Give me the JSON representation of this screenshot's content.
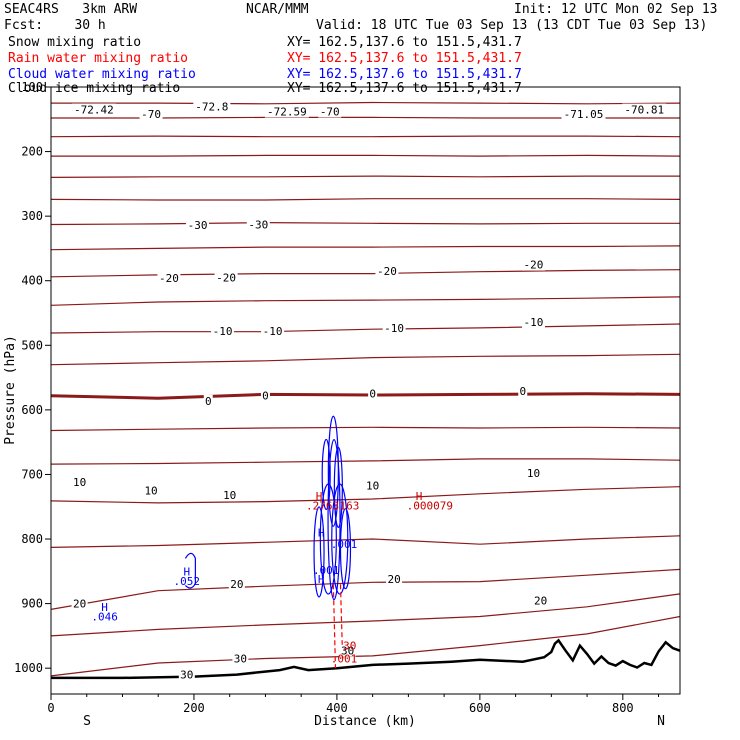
{
  "header": {
    "model": "SEAC4RS   3km ARW",
    "forecast": "Fcst:    30 h",
    "center": "NCAR/MMM",
    "init": "Init: 12 UTC Mon 02 Sep 13",
    "valid": "Valid: 18 UTC Tue 03 Sep 13 (13 CDT Tue 03 Sep 13)"
  },
  "fields": [
    {
      "name": "Snow mixing ratio",
      "xy": "XY= 162.5,137.6 to 151.5,431.7",
      "color": "#000000"
    },
    {
      "name": "Rain water mixing ratio",
      "xy": "XY= 162.5,137.6 to 151.5,431.7",
      "color": "#ff0000"
    },
    {
      "name": "Cloud water mixing ratio",
      "xy": "XY= 162.5,137.6 to 151.5,431.7",
      "color": "#0000ff"
    },
    {
      "name": "Cloud ice mixing ratio",
      "xy": "XY= 162.5,137.6 to 151.5,431.7",
      "color": "#000000"
    }
  ],
  "chart_data": {
    "type": "line",
    "title": "",
    "xlabel": "Distance (km)",
    "ylabel": "Pressure (hPa)",
    "xlim": [
      0,
      880
    ],
    "ylim": [
      1040,
      100
    ],
    "x_ticks": [
      0,
      200,
      400,
      600,
      800
    ],
    "y_ticks": [
      100,
      200,
      300,
      400,
      500,
      600,
      700,
      800,
      900,
      1000
    ],
    "x_end_labels": {
      "left": "S",
      "right": "N"
    },
    "contour_color": "#8b1a1a",
    "terrain_color": "#000000",
    "isotherms": [
      {
        "level": "-70",
        "pressure": [
          125,
          125,
          126,
          124,
          125,
          126,
          125
        ]
      },
      {
        "level": "",
        "pressure": [
          148,
          148,
          147,
          147,
          148,
          148,
          148
        ]
      },
      {
        "level": "",
        "pressure": [
          177,
          176,
          177,
          177,
          176,
          176,
          177
        ]
      },
      {
        "level": "",
        "pressure": [
          207,
          207,
          206,
          206,
          207,
          206,
          207
        ]
      },
      {
        "level": "",
        "pressure": [
          240,
          239,
          239,
          238,
          239,
          238,
          238
        ]
      },
      {
        "level": "",
        "pressure": [
          274,
          275,
          275,
          273,
          273,
          273,
          274
        ]
      },
      {
        "level": "-30",
        "pressure": [
          313,
          312,
          310,
          311,
          312,
          311,
          311
        ]
      },
      {
        "level": "",
        "pressure": [
          352,
          350,
          348,
          348,
          347,
          347,
          346
        ]
      },
      {
        "level": "-20",
        "pressure": [
          394,
          391,
          389,
          389,
          386,
          384,
          383
        ]
      },
      {
        "level": "",
        "pressure": [
          438,
          433,
          431,
          430,
          429,
          427,
          425
        ]
      },
      {
        "level": "-10",
        "pressure": [
          481,
          479,
          479,
          475,
          473,
          470,
          467
        ]
      },
      {
        "level": "",
        "pressure": [
          530,
          527,
          524,
          519,
          517,
          516,
          514
        ]
      },
      {
        "level": "0",
        "pressure": [
          578,
          582,
          576,
          577,
          576,
          575,
          576
        ]
      },
      {
        "level": "",
        "pressure": [
          632,
          630,
          628,
          627,
          628,
          627,
          628
        ]
      },
      {
        "level": "",
        "pressure": [
          684,
          683,
          681,
          679,
          676,
          676,
          678
        ]
      },
      {
        "level": "10",
        "pressure": [
          741,
          744,
          742,
          738,
          730,
          723,
          719
        ]
      },
      {
        "level": "",
        "pressure": [
          813,
          810,
          805,
          800,
          808,
          800,
          795
        ]
      },
      {
        "level": "20",
        "pressure": [
          909,
          880,
          873,
          867,
          866,
          856,
          847
        ]
      },
      {
        "level": "",
        "pressure": [
          950,
          940,
          933,
          927,
          920,
          905,
          885
        ]
      },
      {
        "level": "30",
        "pressure": [
          1012,
          992,
          985,
          981,
          965,
          947,
          920
        ]
      }
    ],
    "isotherm_x": [
      0,
      150,
      300,
      450,
      600,
      750,
      880
    ],
    "contour_labels": [
      {
        "text": "-72.42",
        "x": 60,
        "p": 135
      },
      {
        "text": "-72.8",
        "x": 225,
        "p": 130
      },
      {
        "text": "-72.59",
        "x": 330,
        "p": 138
      },
      {
        "text": "-70",
        "x": 140,
        "p": 142
      },
      {
        "text": "-70",
        "x": 390,
        "p": 138
      },
      {
        "text": "-71.05",
        "x": 745,
        "p": 142
      },
      {
        "text": "-70.81",
        "x": 830,
        "p": 135
      },
      {
        "text": "-30",
        "x": 205,
        "p": 314
      },
      {
        "text": "-30",
        "x": 290,
        "p": 313
      },
      {
        "text": "-20",
        "x": 165,
        "p": 396
      },
      {
        "text": "-20",
        "x": 245,
        "p": 395
      },
      {
        "text": "-20",
        "x": 470,
        "p": 385
      },
      {
        "text": "-20",
        "x": 675,
        "p": 375
      },
      {
        "text": "-10",
        "x": 240,
        "p": 478
      },
      {
        "text": "-10",
        "x": 310,
        "p": 478
      },
      {
        "text": "-10",
        "x": 480,
        "p": 473
      },
      {
        "text": "-10",
        "x": 675,
        "p": 464
      },
      {
        "text": "0",
        "x": 220,
        "p": 586
      },
      {
        "text": "0",
        "x": 300,
        "p": 578
      },
      {
        "text": "0",
        "x": 450,
        "p": 575
      },
      {
        "text": "0",
        "x": 660,
        "p": 571
      },
      {
        "text": "10",
        "x": 40,
        "p": 712
      },
      {
        "text": "10",
        "x": 140,
        "p": 725
      },
      {
        "text": "10",
        "x": 250,
        "p": 732
      },
      {
        "text": "10",
        "x": 450,
        "p": 717
      },
      {
        "text": "10",
        "x": 675,
        "p": 698
      },
      {
        "text": "20",
        "x": 40,
        "p": 900
      },
      {
        "text": "20",
        "x": 260,
        "p": 870
      },
      {
        "text": "20",
        "x": 480,
        "p": 862
      },
      {
        "text": "20",
        "x": 685,
        "p": 895
      },
      {
        "text": "30",
        "x": 190,
        "p": 1010
      },
      {
        "text": "30",
        "x": 265,
        "p": 985
      },
      {
        "text": "30",
        "x": 415,
        "p": 973
      }
    ],
    "terrain": {
      "x": [
        0,
        100,
        200,
        260,
        320,
        340,
        360,
        400,
        450,
        500,
        560,
        600,
        660,
        690,
        700,
        705,
        710,
        720,
        730,
        740,
        750,
        760,
        770,
        780,
        790,
        800,
        810,
        820,
        830,
        840,
        850,
        860,
        870,
        880
      ],
      "pressure": [
        1015,
        1015,
        1013,
        1010,
        1003,
        998,
        1003,
        1000,
        995,
        993,
        990,
        987,
        990,
        983,
        975,
        962,
        957,
        973,
        988,
        965,
        978,
        993,
        982,
        992,
        996,
        989,
        995,
        999,
        992,
        995,
        974,
        960,
        969,
        973
      ]
    },
    "cloud_annotations": [
      {
        "text": "H",
        "x": 190,
        "p": 850,
        "color": "#0000ff"
      },
      {
        "text": ".052",
        "x": 190,
        "p": 865,
        "color": "#0000ff"
      },
      {
        "text": "H",
        "x": 75,
        "p": 905,
        "color": "#0000ff"
      },
      {
        "text": ".046",
        "x": 75,
        "p": 920,
        "color": "#0000ff"
      },
      {
        "text": "H",
        "x": 378,
        "p": 790,
        "color": "#0000ff"
      },
      {
        "text": ".001",
        "x": 410,
        "p": 808,
        "color": "#0000ff"
      },
      {
        "text": ".001",
        "x": 385,
        "p": 848,
        "color": "#0000ff"
      },
      {
        "text": "H",
        "x": 378,
        "p": 862,
        "color": "#0000ff"
      },
      {
        "text": "H",
        "x": 375,
        "p": 733,
        "color": "#cc0000"
      },
      {
        "text": ".2763",
        "x": 380,
        "p": 748,
        "color": "#cc0000"
      },
      {
        "text": ".163",
        "x": 413,
        "p": 748,
        "color": "#cc0000"
      },
      {
        "text": "H",
        "x": 515,
        "p": 733,
        "color": "#cc0000"
      },
      {
        "text": ".000079",
        "x": 530,
        "p": 748,
        "color": "#cc0000"
      },
      {
        "text": "30",
        "x": 418,
        "p": 965,
        "color": "#cc0000"
      },
      {
        "text": ".001",
        "x": 410,
        "p": 985,
        "color": "#cc0000"
      }
    ]
  }
}
